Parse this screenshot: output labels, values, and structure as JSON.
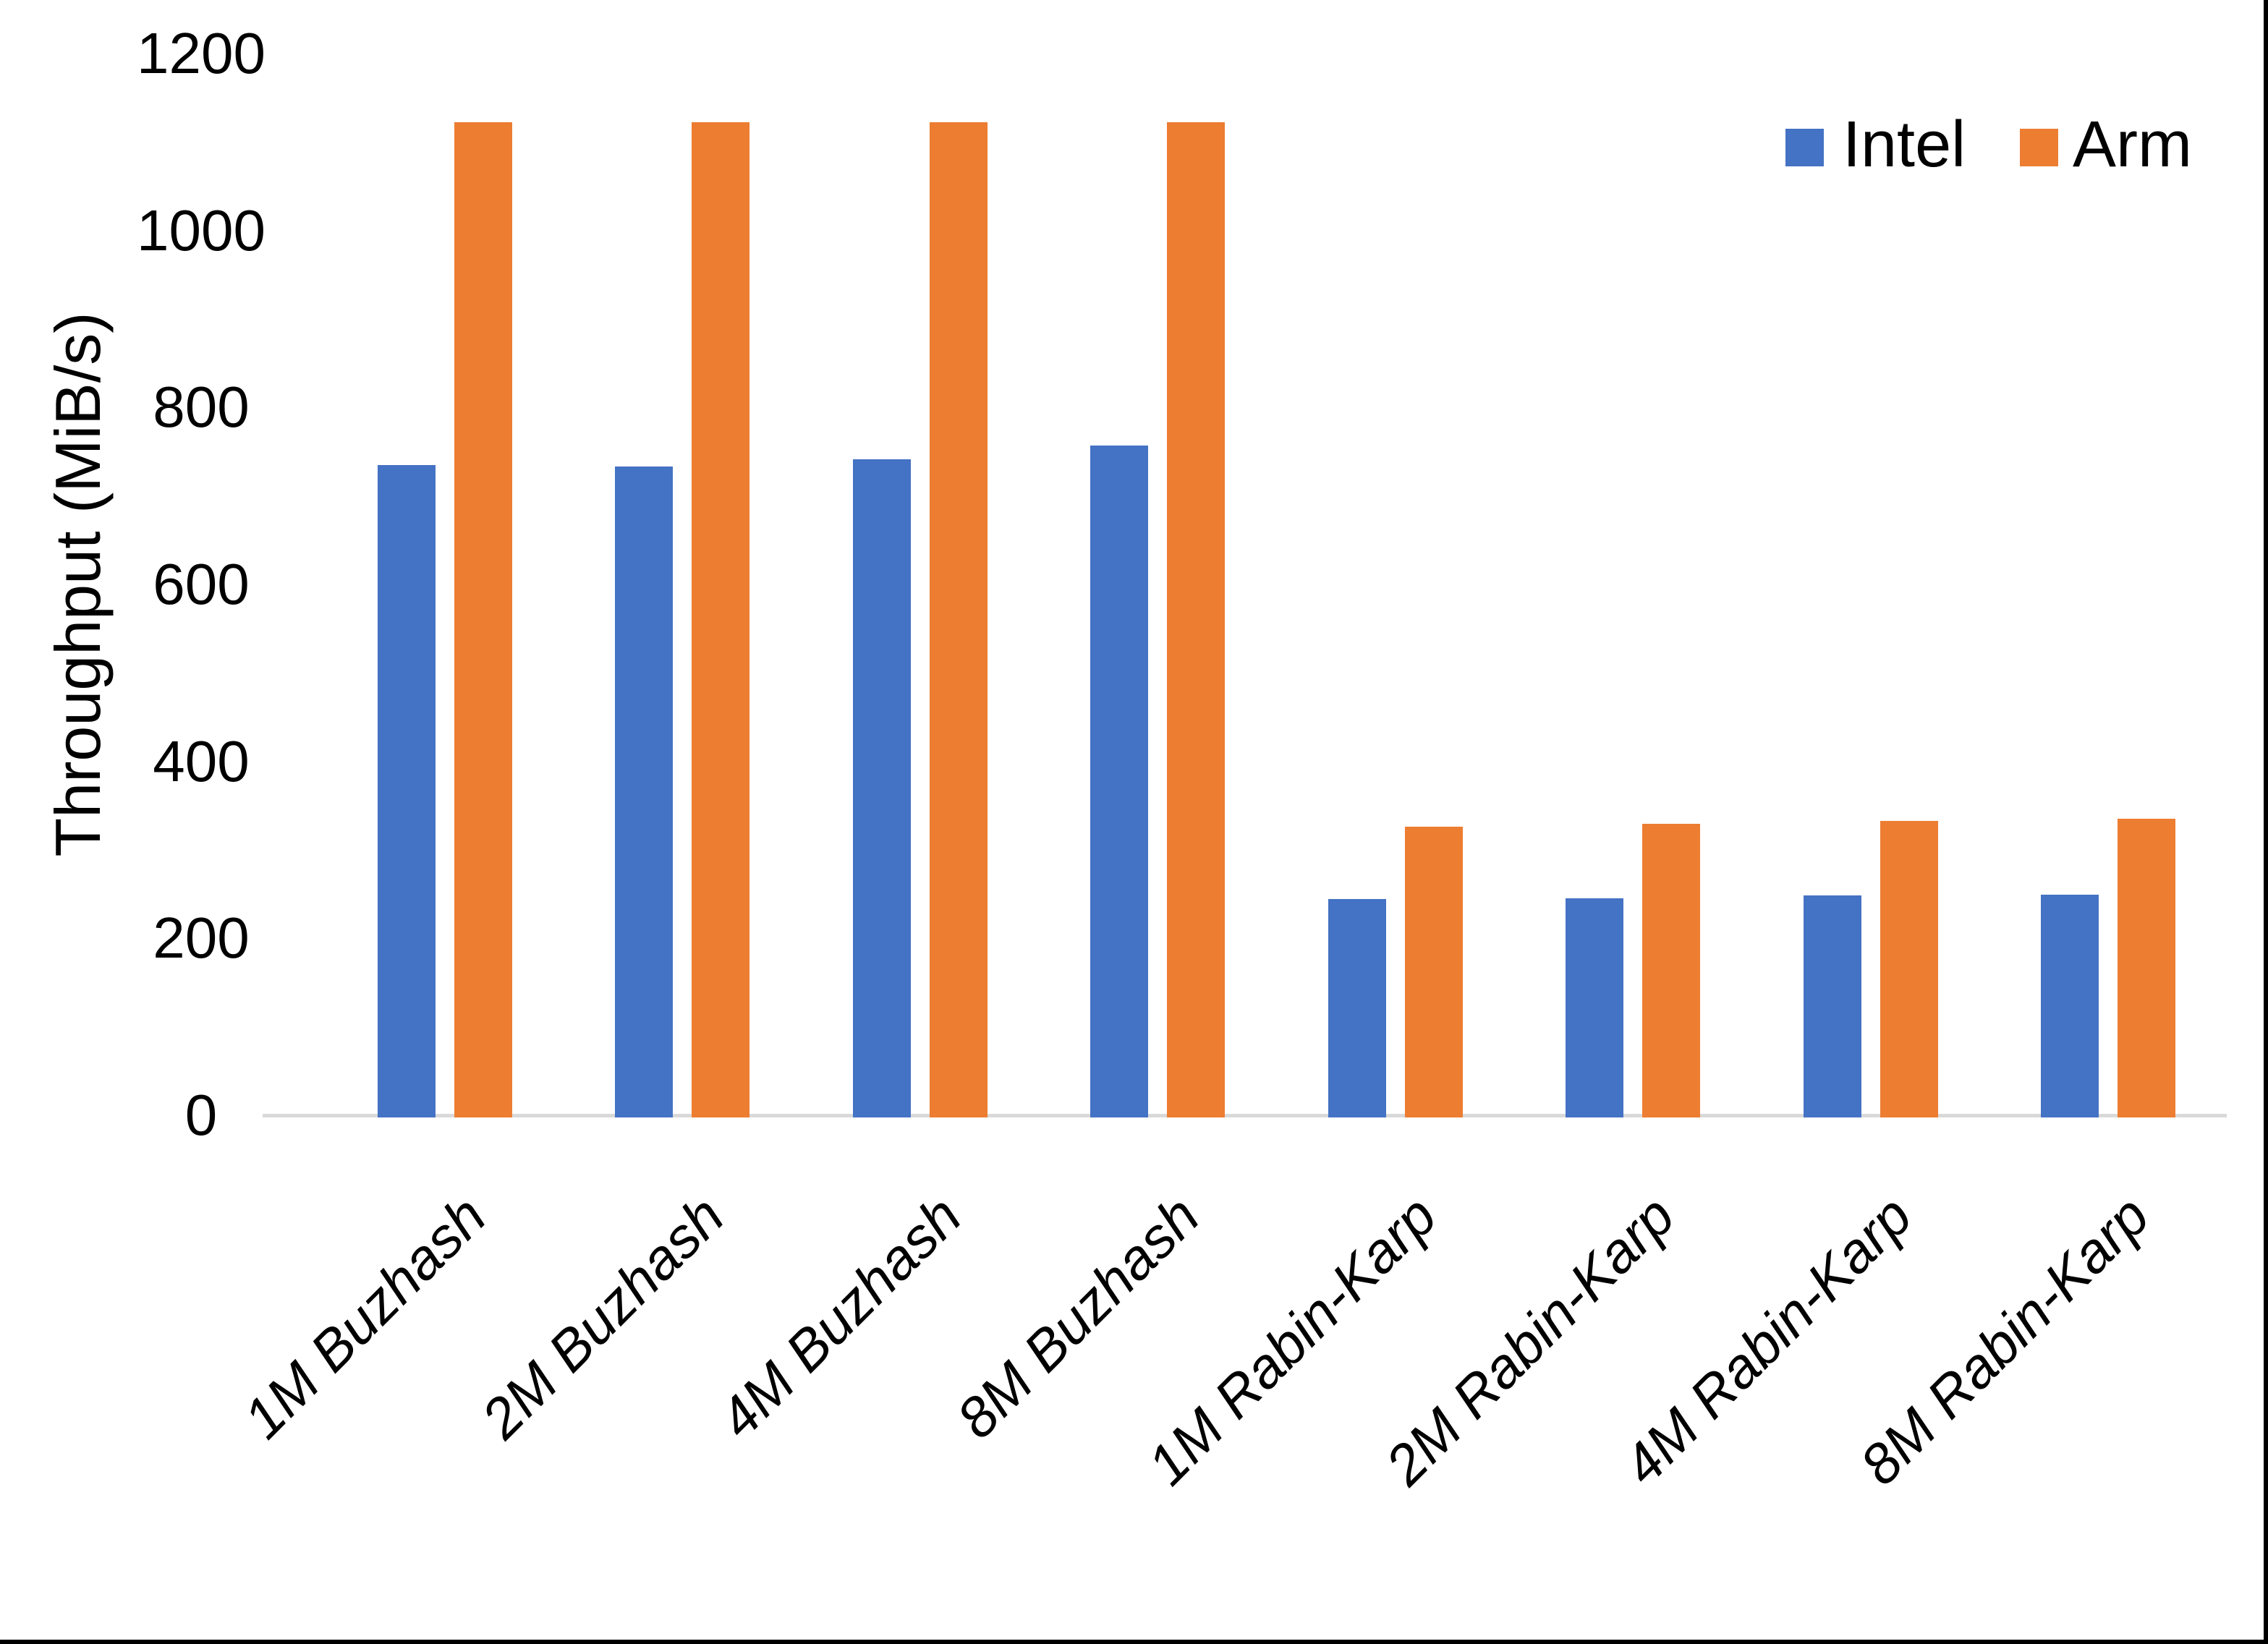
{
  "chart_data": {
    "type": "bar",
    "title": "",
    "xlabel": "",
    "ylabel": "Throughput (MiB/s)",
    "categories": [
      "1M Buzhash",
      "2M Buzhash",
      "4M Buzhash",
      "8M Buzhash",
      "1M Rabin-Karp",
      "2M Rabin-Karp",
      "4M Rabin-Karp",
      "8M Rabin-Karp"
    ],
    "series": [
      {
        "name": "Intel",
        "color": "#4472C4",
        "values": [
          737,
          736,
          744,
          759,
          247,
          248,
          251,
          252
        ]
      },
      {
        "name": "Arm",
        "color": "#ED7D31",
        "values": [
          1125,
          1125,
          1125,
          1125,
          329,
          332,
          335,
          338
        ]
      }
    ],
    "ylim": [
      0,
      1200
    ],
    "yticks": [
      0,
      200,
      400,
      600,
      800,
      1000,
      1200
    ],
    "grid": false,
    "legend_position": "top-right"
  },
  "colors": {
    "intel": "#4472C4",
    "arm": "#ED7D31",
    "axis_line": "#D9D9D9",
    "text": "#000000",
    "background": "#FFFFFF",
    "screen_edge": "#000000"
  }
}
